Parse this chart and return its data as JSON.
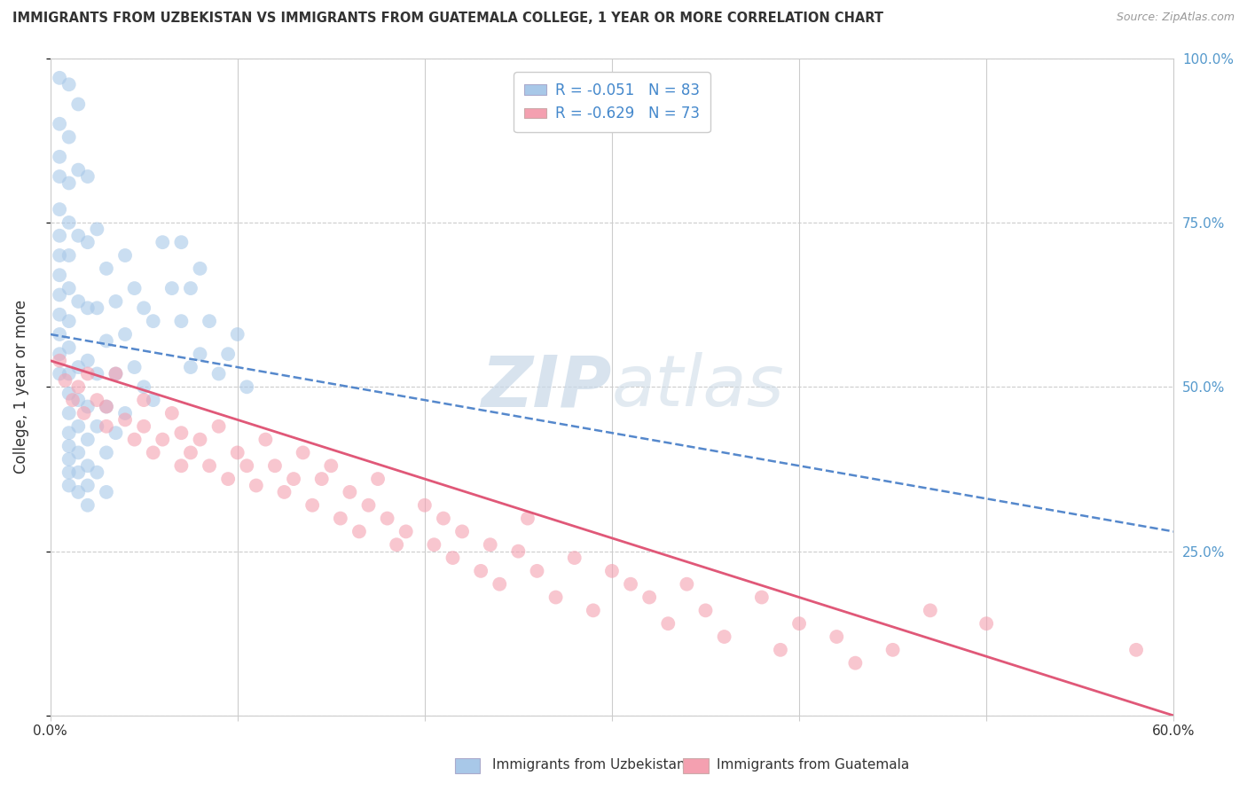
{
  "title": "IMMIGRANTS FROM UZBEKISTAN VS IMMIGRANTS FROM GUATEMALA COLLEGE, 1 YEAR OR MORE CORRELATION CHART",
  "source": "Source: ZipAtlas.com",
  "ylabel": "College, 1 year or more",
  "xlim": [
    0.0,
    0.6
  ],
  "ylim": [
    0.0,
    1.0
  ],
  "xticks": [
    0.0,
    0.1,
    0.2,
    0.3,
    0.4,
    0.5,
    0.6
  ],
  "xticklabels": [
    "0.0%",
    "",
    "",
    "",
    "",
    "",
    "60.0%"
  ],
  "yticks": [
    0.0,
    0.25,
    0.5,
    0.75,
    1.0
  ],
  "yticklabels_right": [
    "",
    "25.0%",
    "50.0%",
    "75.0%",
    "100.0%"
  ],
  "legend_uzbekistan": "R = -0.051   N = 83",
  "legend_guatemala": "R = -0.629   N = 73",
  "color_uzbekistan": "#a8c8e8",
  "color_guatemala": "#f4a0b0",
  "color_line_uzbekistan": "#5588cc",
  "color_line_guatemala": "#e05878",
  "watermark_zip": "ZIP",
  "watermark_atlas": "atlas",
  "uzbekistan_x": [
    0.005,
    0.005,
    0.005,
    0.005,
    0.005,
    0.005,
    0.005,
    0.005,
    0.005,
    0.005,
    0.005,
    0.005,
    0.005,
    0.01,
    0.01,
    0.01,
    0.01,
    0.01,
    0.01,
    0.01,
    0.01,
    0.01,
    0.01,
    0.01,
    0.01,
    0.01,
    0.01,
    0.01,
    0.01,
    0.015,
    0.015,
    0.015,
    0.015,
    0.015,
    0.015,
    0.015,
    0.015,
    0.015,
    0.015,
    0.02,
    0.02,
    0.02,
    0.02,
    0.02,
    0.02,
    0.02,
    0.02,
    0.02,
    0.025,
    0.025,
    0.025,
    0.025,
    0.025,
    0.03,
    0.03,
    0.03,
    0.03,
    0.03,
    0.035,
    0.035,
    0.035,
    0.04,
    0.04,
    0.04,
    0.045,
    0.045,
    0.05,
    0.05,
    0.055,
    0.055,
    0.06,
    0.065,
    0.07,
    0.07,
    0.075,
    0.075,
    0.08,
    0.08,
    0.085,
    0.09,
    0.095,
    0.1,
    0.105
  ],
  "uzbekistan_y": [
    0.97,
    0.9,
    0.85,
    0.82,
    0.77,
    0.73,
    0.7,
    0.67,
    0.64,
    0.61,
    0.58,
    0.55,
    0.52,
    0.96,
    0.88,
    0.81,
    0.75,
    0.7,
    0.65,
    0.6,
    0.56,
    0.52,
    0.49,
    0.46,
    0.43,
    0.41,
    0.39,
    0.37,
    0.35,
    0.93,
    0.83,
    0.73,
    0.63,
    0.53,
    0.48,
    0.44,
    0.4,
    0.37,
    0.34,
    0.82,
    0.72,
    0.62,
    0.54,
    0.47,
    0.42,
    0.38,
    0.35,
    0.32,
    0.74,
    0.62,
    0.52,
    0.44,
    0.37,
    0.68,
    0.57,
    0.47,
    0.4,
    0.34,
    0.63,
    0.52,
    0.43,
    0.7,
    0.58,
    0.46,
    0.65,
    0.53,
    0.62,
    0.5,
    0.6,
    0.48,
    0.72,
    0.65,
    0.72,
    0.6,
    0.65,
    0.53,
    0.68,
    0.55,
    0.6,
    0.52,
    0.55,
    0.58,
    0.5
  ],
  "guatemala_x": [
    0.005,
    0.008,
    0.012,
    0.015,
    0.018,
    0.02,
    0.025,
    0.03,
    0.03,
    0.035,
    0.04,
    0.045,
    0.05,
    0.05,
    0.055,
    0.06,
    0.065,
    0.07,
    0.07,
    0.075,
    0.08,
    0.085,
    0.09,
    0.095,
    0.1,
    0.105,
    0.11,
    0.115,
    0.12,
    0.125,
    0.13,
    0.135,
    0.14,
    0.145,
    0.15,
    0.155,
    0.16,
    0.165,
    0.17,
    0.175,
    0.18,
    0.185,
    0.19,
    0.2,
    0.205,
    0.21,
    0.215,
    0.22,
    0.23,
    0.235,
    0.24,
    0.25,
    0.255,
    0.26,
    0.27,
    0.28,
    0.29,
    0.3,
    0.31,
    0.32,
    0.33,
    0.34,
    0.35,
    0.36,
    0.38,
    0.39,
    0.4,
    0.42,
    0.43,
    0.45,
    0.47,
    0.5,
    0.58
  ],
  "guatemala_y": [
    0.54,
    0.51,
    0.48,
    0.5,
    0.46,
    0.52,
    0.48,
    0.47,
    0.44,
    0.52,
    0.45,
    0.42,
    0.48,
    0.44,
    0.4,
    0.42,
    0.46,
    0.38,
    0.43,
    0.4,
    0.42,
    0.38,
    0.44,
    0.36,
    0.4,
    0.38,
    0.35,
    0.42,
    0.38,
    0.34,
    0.36,
    0.4,
    0.32,
    0.36,
    0.38,
    0.3,
    0.34,
    0.28,
    0.32,
    0.36,
    0.3,
    0.26,
    0.28,
    0.32,
    0.26,
    0.3,
    0.24,
    0.28,
    0.22,
    0.26,
    0.2,
    0.25,
    0.3,
    0.22,
    0.18,
    0.24,
    0.16,
    0.22,
    0.2,
    0.18,
    0.14,
    0.2,
    0.16,
    0.12,
    0.18,
    0.1,
    0.14,
    0.12,
    0.08,
    0.1,
    0.16,
    0.14,
    0.1
  ]
}
